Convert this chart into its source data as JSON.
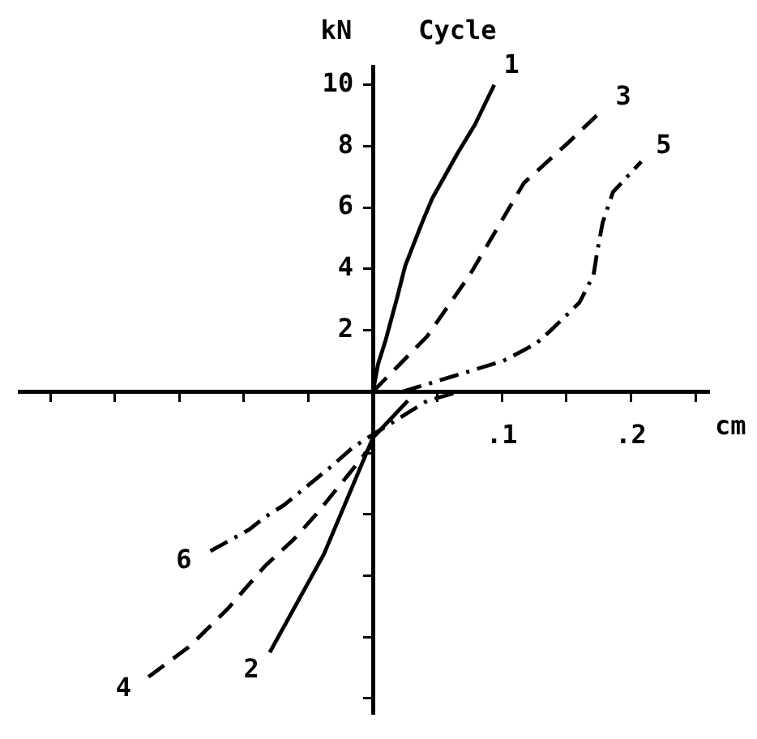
{
  "chart_data": {
    "type": "line",
    "xlabel": "cm",
    "ylabel": "kN",
    "annotations": [
      "Cycle"
    ],
    "xlim": [
      -0.274,
      0.26
    ],
    "ylim": [
      -10.5,
      10.6
    ],
    "xticks": [
      {
        "value": -0.25,
        "label": null
      },
      {
        "value": -0.2,
        "label": null
      },
      {
        "value": -0.15,
        "label": null
      },
      {
        "value": -0.1,
        "label": null
      },
      {
        "value": -0.05,
        "label": null
      },
      {
        "value": 0.05,
        "label": null
      },
      {
        "value": 0.1,
        "label": ".1"
      },
      {
        "value": 0.15,
        "label": null
      },
      {
        "value": 0.2,
        "label": ".2"
      },
      {
        "value": 0.25,
        "label": null
      }
    ],
    "yticks": [
      {
        "value": -10,
        "label": null
      },
      {
        "value": -8,
        "label": null
      },
      {
        "value": -6,
        "label": null
      },
      {
        "value": -4,
        "label": null
      },
      {
        "value": -2,
        "label": null
      },
      2,
      4,
      6,
      8,
      10
    ],
    "series": [
      {
        "name": "1",
        "color": "#000000",
        "line_style": "solid",
        "x": [
          0,
          0.004,
          0.01,
          0.019,
          0.025,
          0.038,
          0.046,
          0.066,
          0.079,
          0.094
        ],
        "values": [
          0,
          0.9,
          1.7,
          3.1,
          4.1,
          5.5,
          6.3,
          7.8,
          8.7,
          10.0
        ]
      },
      {
        "name": "3",
        "color": "#000000",
        "line_style": "dashed",
        "x": [
          0,
          0.021,
          0.042,
          0.075,
          0.096,
          0.117,
          0.151,
          0.176
        ],
        "values": [
          0,
          0.9,
          1.8,
          3.8,
          5.3,
          6.8,
          8.1,
          9.1
        ]
      },
      {
        "name": "5",
        "color": "#000000",
        "line_style": "dashdot",
        "x": [
          0.023,
          0.062,
          0.101,
          0.126,
          0.138,
          0.16,
          0.171,
          0.174,
          0.178,
          0.186,
          0.208
        ],
        "values": [
          0,
          0.5,
          1.0,
          1.55,
          2.0,
          2.9,
          3.8,
          4.6,
          5.5,
          6.5,
          7.5
        ]
      },
      {
        "name": "6",
        "color": "#000000",
        "line_style": "dashdot",
        "x": [
          -0.126,
          -0.096,
          -0.084,
          -0.069,
          -0.034,
          -0.015,
          0,
          0.042,
          0.063
        ],
        "values": [
          -5.2,
          -4.5,
          -4.1,
          -3.7,
          -2.5,
          -1.8,
          -1.4,
          -0.3,
          -0.05
        ]
      },
      {
        "name": "4",
        "color": "#000000",
        "line_style": "dashed",
        "x": [
          -0.174,
          -0.142,
          -0.113,
          -0.084,
          -0.061,
          -0.044,
          -0.017,
          0
        ],
        "values": [
          -9.3,
          -8.3,
          -7.1,
          -5.7,
          -4.8,
          -4.0,
          -2.6,
          -1.7
        ]
      },
      {
        "name": "2",
        "color": "#000000",
        "line_style": "solid",
        "x": [
          -0.08,
          -0.038,
          0,
          0.027
        ],
        "values": [
          -8.5,
          -5.3,
          -1.5,
          -0.3
        ]
      }
    ]
  }
}
